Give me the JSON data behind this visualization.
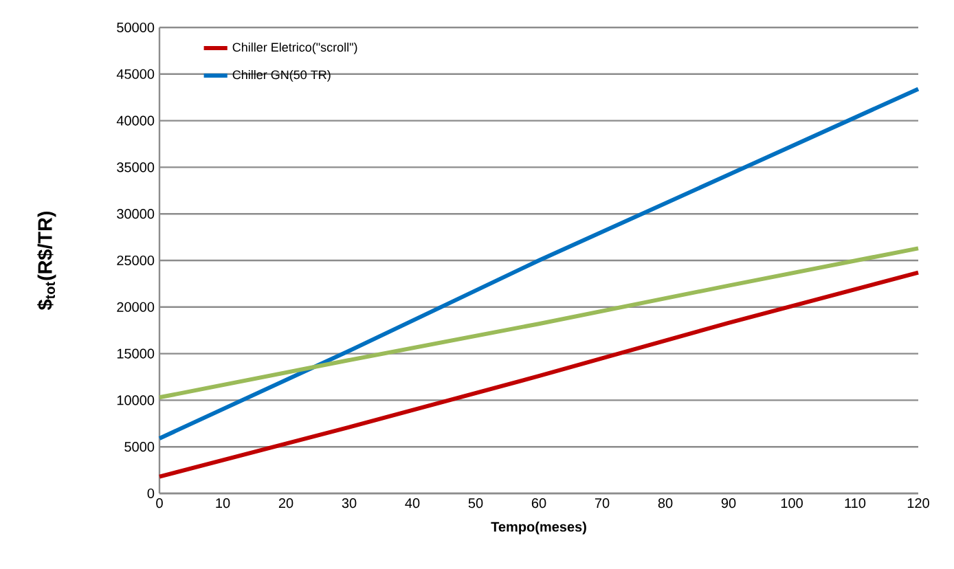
{
  "chart_data": {
    "type": "line",
    "xlabel": "Tempo(meses)",
    "ylabel": "$$_{tot}$(R$/TR)",
    "x": [
      0,
      30,
      60,
      90,
      120
    ],
    "series": [
      {
        "name": "Chiller Eletrico(\"scroll\")",
        "color": "#c00000",
        "values": [
          1800,
          7100,
          12600,
          18300,
          23700
        ]
      },
      {
        "name": "Chiller GN(50  TR)",
        "color": "#0070c0",
        "values": [
          5900,
          15300,
          25000,
          34200,
          43400
        ]
      },
      {
        "color": "#9bbb59",
        "values": [
          10300,
          14300,
          18200,
          22300,
          26300
        ]
      }
    ],
    "xlim": [
      0,
      120
    ],
    "xticks": [
      0,
      10,
      20,
      30,
      40,
      50,
      60,
      70,
      80,
      90,
      100,
      110,
      120
    ],
    "ylim": [
      0,
      50000
    ],
    "yticks": [
      0,
      5000,
      10000,
      15000,
      20000,
      25000,
      30000,
      35000,
      40000,
      45000,
      50000
    ],
    "grid": "y",
    "legend": "top left",
    "marker": "none",
    "line_style": "solid"
  }
}
